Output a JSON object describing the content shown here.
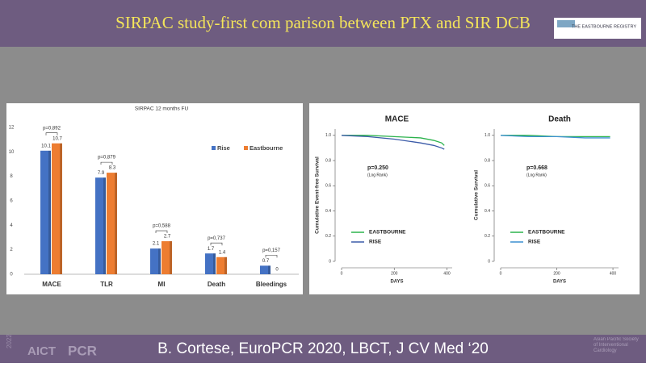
{
  "slide": {
    "title": "SIRPAC study-first com parison between PTX and SIR DCB",
    "logo": "THE EASTBOURNE REGISTRY",
    "citation": "B. Cortese, EuroPCR 2020, LBCT, J CV Med ‘20",
    "footer_left": [
      "AICT",
      "PCR",
      "2022"
    ],
    "footer_right": "Asian Pacific Society of Interventional Cardiology"
  },
  "chart_data": [
    {
      "type": "bar",
      "title": "SIRPAC 12 months FU",
      "categories": [
        "MACE",
        "TLR",
        "MI",
        "Death",
        "Bleedings"
      ],
      "series": [
        {
          "name": "Rise",
          "color": "#4472c4",
          "values": [
            10.1,
            7.9,
            2.1,
            1.7,
            0.7
          ]
        },
        {
          "name": "Eastbourne",
          "color": "#ed7d31",
          "values": [
            10.7,
            8.3,
            2.7,
            1.4,
            0
          ]
        }
      ],
      "annotations": [
        "p=0,892",
        "p=0,879",
        "p=0,588",
        "p=0,737",
        "p=0,157"
      ],
      "ylim": [
        0,
        12
      ],
      "yticks": [
        0,
        2,
        4,
        6,
        8,
        10,
        12
      ],
      "grid": false,
      "legend": "top-right"
    },
    {
      "type": "line",
      "title": "MACE",
      "ylabel": "Cumulative Event-free Survival",
      "xlabel": "DAYS",
      "annotations": [
        "p=0.250",
        "(Log Rank)"
      ],
      "x": [
        0,
        100,
        200,
        300,
        350,
        380,
        390
      ],
      "series": [
        {
          "name": "EASTBOURNE",
          "color": "#2bb24c",
          "values": [
            1,
            1,
            0.99,
            0.98,
            0.96,
            0.94,
            0.92
          ]
        },
        {
          "name": "RISE",
          "color": "#3b5ba8",
          "values": [
            1,
            0.99,
            0.97,
            0.94,
            0.92,
            0.9,
            0.89
          ]
        }
      ],
      "xlim": [
        0,
        420
      ],
      "xticks": [
        0,
        200,
        400
      ],
      "ylim": [
        0,
        1.05
      ],
      "yticks": [
        {
          "value": 1,
          "label": "1.0"
        },
        0.8,
        0.6,
        0.4,
        0.2,
        0
      ]
    },
    {
      "type": "line",
      "title": "Death",
      "ylabel": "Cumulative Survival",
      "xlabel": "DAYS",
      "annotations": [
        "p=0.668",
        "(Log Rank)"
      ],
      "x": [
        0,
        100,
        200,
        300,
        390
      ],
      "series": [
        {
          "name": "EASTBOURNE",
          "color": "#2bb24c",
          "values": [
            1,
            1,
            0.99,
            0.99,
            0.99
          ]
        },
        {
          "name": "RISE",
          "color": "#3b8fd0",
          "values": [
            1,
            0.99,
            0.99,
            0.98,
            0.98
          ]
        }
      ],
      "xlim": [
        0,
        420
      ],
      "xticks": [
        0,
        200,
        400
      ],
      "ylim": [
        0,
        1.05
      ],
      "yticks": [
        {
          "value": 1,
          "label": "1.0"
        },
        0.8,
        0.6,
        0.4,
        0.2,
        0
      ]
    }
  ]
}
